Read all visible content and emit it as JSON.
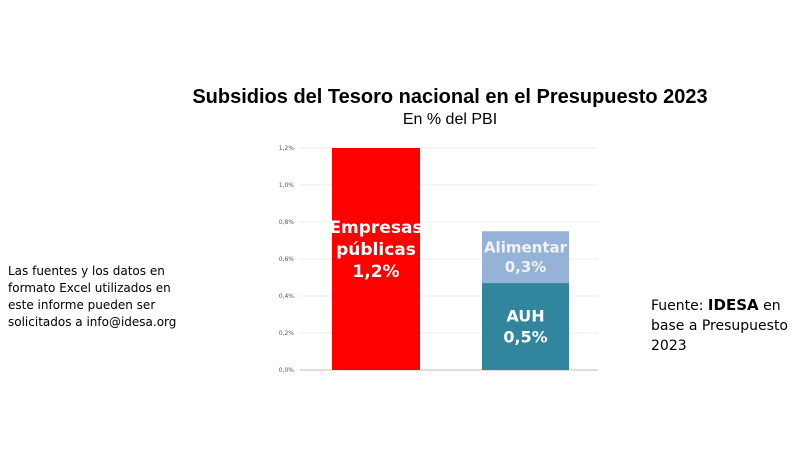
{
  "chart_data": {
    "type": "bar",
    "stacked": true,
    "title": "Subsidios del Tesoro nacional en el Presupuesto 2023",
    "subtitle": "En % del PBI",
    "ylim": [
      0,
      1.2
    ],
    "y_ticks": [
      "0,0%",
      "0,2%",
      "0,4%",
      "0,6%",
      "0,8%",
      "1,0%",
      "1,2%"
    ],
    "y_tick_values": [
      0,
      0.2,
      0.4,
      0.6,
      0.8,
      1.0,
      1.2
    ],
    "grid": true,
    "bars": [
      {
        "segments": [
          {
            "lines": [
              "Empresas",
              "públicas",
              "1,2%"
            ],
            "value": 1.2,
            "color": "#ff0000"
          }
        ]
      },
      {
        "segments": [
          {
            "lines": [
              "AUH",
              "0,5%"
            ],
            "value": 0.47,
            "color": "#31859c"
          },
          {
            "lines": [
              "Alimentar",
              "0,3%"
            ],
            "value": 0.28,
            "color": "#95b3d7"
          }
        ]
      }
    ]
  },
  "note_left": "Las fuentes y los datos en formato Excel utilizados en este informe pueden ser solicitados a info@idesa.org",
  "source": {
    "prefix": "Fuente: ",
    "brand": "IDESA",
    "suffix": " en base a Presupuesto 2023"
  }
}
